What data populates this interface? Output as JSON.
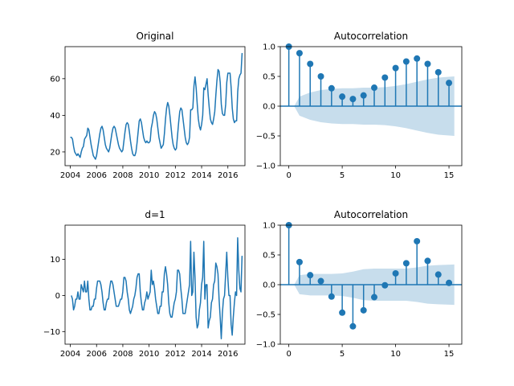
{
  "colors": {
    "line": "#1f77b4",
    "band": "#1f77b4"
  },
  "chart_data": [
    {
      "type": "line",
      "title": "Original",
      "x_ticks": [
        "2004",
        "2006",
        "2008",
        "2010",
        "2012",
        "2014",
        "2016"
      ],
      "y_ticks": [
        "20",
        "40",
        "60"
      ],
      "xlim": [
        2003.6,
        2017.3
      ],
      "ylim": [
        12.5,
        77.5
      ],
      "x_start": 2004.0,
      "x_step": 0.08333,
      "values": [
        28,
        28,
        27,
        23,
        20,
        19,
        18,
        19,
        18,
        17,
        20,
        22,
        23,
        27,
        28,
        29,
        33,
        32,
        28,
        24,
        21,
        18,
        17,
        16,
        18,
        22,
        26,
        30,
        33,
        34,
        32,
        28,
        24,
        22,
        21,
        20,
        22,
        26,
        30,
        33,
        34,
        33,
        30,
        27,
        24,
        22,
        21,
        20,
        21,
        26,
        31,
        35,
        36,
        35,
        31,
        26,
        22,
        19,
        18,
        18,
        20,
        25,
        31,
        37,
        38,
        36,
        32,
        28,
        26,
        25,
        26,
        25,
        25,
        26,
        33,
        36,
        40,
        42,
        41,
        38,
        33,
        28,
        25,
        22,
        23,
        24,
        30,
        38,
        44,
        47,
        45,
        40,
        34,
        28,
        24,
        22,
        21,
        22,
        29,
        36,
        42,
        44,
        43,
        38,
        33,
        28,
        25,
        24,
        25,
        28,
        43,
        43,
        44,
        56,
        61,
        55,
        46,
        38,
        34,
        32,
        35,
        40,
        55,
        54,
        57,
        60,
        51,
        44,
        38,
        36,
        35,
        38,
        42,
        51,
        59,
        65,
        64,
        58,
        46,
        41,
        40,
        40,
        46,
        58,
        63,
        63,
        63,
        55,
        44,
        38,
        36,
        37,
        37,
        53,
        60,
        62,
        63,
        74
      ]
    },
    {
      "type": "bar",
      "title": "Autocorrelation",
      "x_ticks": [
        "0",
        "5",
        "10",
        "15"
      ],
      "y_ticks": [
        "−1.0",
        "−0.5",
        "0.0",
        "0.5",
        "1.0"
      ],
      "xlim": [
        -0.8,
        16.2
      ],
      "ylim": [
        -1.0,
        1.0
      ],
      "lags": [
        0,
        1,
        2,
        3,
        4,
        5,
        6,
        7,
        8,
        9,
        10,
        11,
        12,
        13,
        14,
        15
      ],
      "values": [
        1.0,
        0.89,
        0.71,
        0.5,
        0.3,
        0.16,
        0.12,
        0.18,
        0.31,
        0.48,
        0.64,
        0.75,
        0.8,
        0.71,
        0.57,
        0.39
      ],
      "confidence_band": [
        0.0,
        0.16,
        0.23,
        0.27,
        0.29,
        0.3,
        0.3,
        0.31,
        0.31,
        0.32,
        0.34,
        0.37,
        0.41,
        0.45,
        0.48,
        0.5
      ]
    },
    {
      "type": "line",
      "title": "d=1",
      "x_ticks": [
        "2004",
        "2006",
        "2008",
        "2010",
        "2012",
        "2014",
        "2016"
      ],
      "y_ticks": [
        "−10",
        "0",
        "10"
      ],
      "xlim": [
        2003.6,
        2017.3
      ],
      "ylim": [
        -13.5,
        19.5
      ],
      "x_start": 2004.08,
      "x_step": 0.08333,
      "values": [
        0,
        -1,
        -4,
        -3,
        -1,
        -1,
        1,
        -1,
        -1,
        3,
        2,
        1,
        4,
        1,
        1,
        4,
        -1,
        -4,
        -4,
        -3,
        -3,
        -1,
        -1,
        2,
        4,
        4,
        4,
        3,
        1,
        -2,
        -4,
        -4,
        -2,
        -1,
        -1,
        2,
        4,
        4,
        3,
        1,
        -1,
        -3,
        -3,
        -3,
        -2,
        -1,
        -1,
        1,
        5,
        5,
        4,
        1,
        -1,
        -4,
        -5,
        -4,
        -3,
        -1,
        0,
        2,
        5,
        6,
        6,
        1,
        -2,
        -4,
        -4,
        -2,
        -1,
        1,
        -1,
        0,
        1,
        7,
        3,
        4,
        2,
        -1,
        -3,
        -5,
        -5,
        -3,
        -3,
        1,
        1,
        6,
        8,
        6,
        3,
        -2,
        -5,
        -6,
        -6,
        -4,
        -2,
        -1,
        1,
        7,
        7,
        6,
        2,
        -1,
        -5,
        -5,
        -5,
        -3,
        -1,
        1,
        3,
        15,
        0,
        1,
        12,
        5,
        -6,
        -9,
        -8,
        -4,
        -2,
        3,
        5,
        15,
        -1,
        3,
        3,
        -9,
        -7,
        -6,
        -2,
        -1,
        3,
        4,
        9,
        8,
        6,
        -1,
        -6,
        -12,
        -5,
        -1,
        0,
        6,
        12,
        5,
        0,
        0,
        -8,
        -11,
        -6,
        -2,
        1,
        0,
        16,
        7,
        2,
        1,
        11
      ]
    },
    {
      "type": "bar",
      "title": "Autocorrelation",
      "x_ticks": [
        "0",
        "5",
        "10",
        "15"
      ],
      "y_ticks": [
        "−1.0",
        "−0.5",
        "0.0",
        "0.5",
        "1.0"
      ],
      "xlim": [
        -0.8,
        16.2
      ],
      "ylim": [
        -1.0,
        1.0
      ],
      "lags": [
        0,
        1,
        2,
        3,
        4,
        5,
        6,
        7,
        8,
        9,
        10,
        11,
        12,
        13,
        14,
        15
      ],
      "values": [
        1.0,
        0.38,
        0.16,
        0.06,
        -0.2,
        -0.47,
        -0.7,
        -0.43,
        -0.21,
        -0.01,
        0.19,
        0.36,
        0.73,
        0.4,
        0.17,
        0.03
      ],
      "confidence_band": [
        0.0,
        0.16,
        0.18,
        0.18,
        0.18,
        0.19,
        0.22,
        0.26,
        0.27,
        0.27,
        0.27,
        0.27,
        0.29,
        0.32,
        0.33,
        0.34
      ]
    }
  ]
}
